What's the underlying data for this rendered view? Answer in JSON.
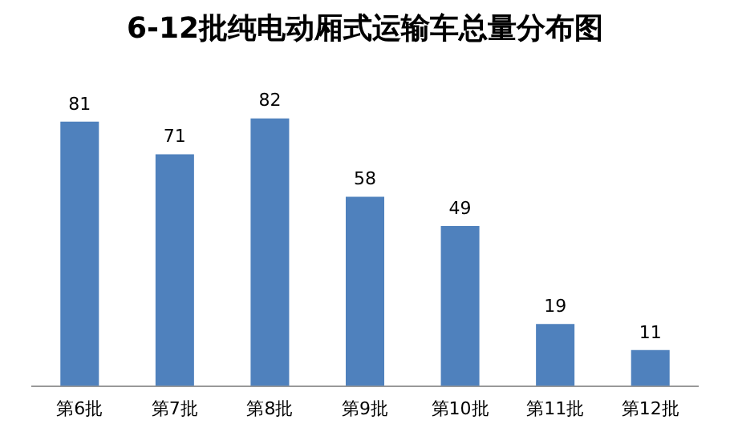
{
  "chart_data": {
    "type": "bar",
    "title": "6-12批纯电动厢式运输车总量分布图",
    "categories": [
      "第6批",
      "第7批",
      "第8批",
      "第9批",
      "第10批",
      "第11批",
      "第12批"
    ],
    "values": [
      81,
      71,
      82,
      58,
      49,
      19,
      11
    ],
    "color": "#4f81bd",
    "data_labels": true,
    "grid": false,
    "legend": false
  }
}
